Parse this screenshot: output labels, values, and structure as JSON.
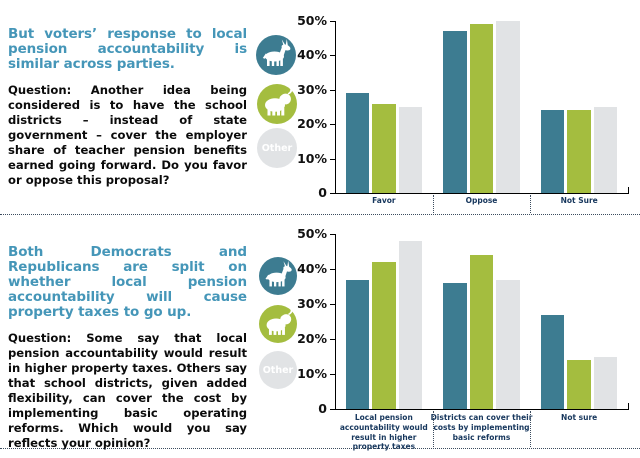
{
  "page": {
    "panels": [
      {
        "heading": "But voters’ response to local pension accountability is similar across parties.",
        "question": "Question: Another idea being considered is to have the school districts – instead of state government – cover the employer share of teacher pension benefits earned going forward.  Do you favor or oppose this proposal?"
      },
      {
        "heading": "Both Democrats and Republicans are split on whether local pension accountability will cause property taxes to go up.",
        "question": "Question: Some say that local pension accountability would result in higher property taxes. Others say that school districts, given added flexibility, can cover the cost by implementing basic operating reforms. Which would you say reflects your opinion?"
      }
    ]
  },
  "legend": {
    "items": [
      {
        "name": "democrats",
        "icon": "donkey-icon",
        "color": "#3D7C91",
        "label": ""
      },
      {
        "name": "republicans",
        "icon": "elephant-icon",
        "color": "#A4BD3F",
        "label": ""
      },
      {
        "name": "other",
        "icon": "other-circle",
        "color": "#E1E3E5",
        "label": "Other"
      }
    ]
  },
  "colors": {
    "heading_blue": "#4596B8",
    "axis": "#000000",
    "category_label": "#17375D",
    "separator_dotted": "#3C4C5E"
  },
  "chart_data": [
    {
      "type": "bar",
      "title": "",
      "categories": [
        "Favor",
        "Oppose",
        "Not Sure"
      ],
      "series": [
        {
          "name": "Democrats",
          "color": "#3D7C91",
          "values": [
            29,
            47,
            24
          ]
        },
        {
          "name": "Republicans",
          "color": "#A4BD3F",
          "values": [
            26,
            49,
            24
          ]
        },
        {
          "name": "Other",
          "color": "#E1E3E5",
          "values": [
            25,
            50,
            25
          ]
        }
      ],
      "xlabel": "",
      "ylabel": "",
      "ylim": [
        0,
        50
      ],
      "yticks": [
        "50%",
        "40%",
        "30%",
        "20%",
        "10%",
        "0"
      ],
      "grid": false,
      "legend_position": "left"
    },
    {
      "type": "bar",
      "title": "",
      "categories": [
        "Local pension accountability would result in higher property taxes",
        "Districts can cover their costs by implementing basic reforms",
        "Not sure"
      ],
      "series": [
        {
          "name": "Democrats",
          "color": "#3D7C91",
          "values": [
            37,
            36,
            27
          ]
        },
        {
          "name": "Republicans",
          "color": "#A4BD3F",
          "values": [
            42,
            44,
            14
          ]
        },
        {
          "name": "Other",
          "color": "#E1E3E5",
          "values": [
            48,
            37,
            15
          ]
        }
      ],
      "xlabel": "",
      "ylabel": "",
      "ylim": [
        0,
        50
      ],
      "yticks": [
        "50%",
        "40%",
        "30%",
        "20%",
        "10%",
        "0"
      ],
      "grid": false,
      "legend_position": "left"
    }
  ]
}
